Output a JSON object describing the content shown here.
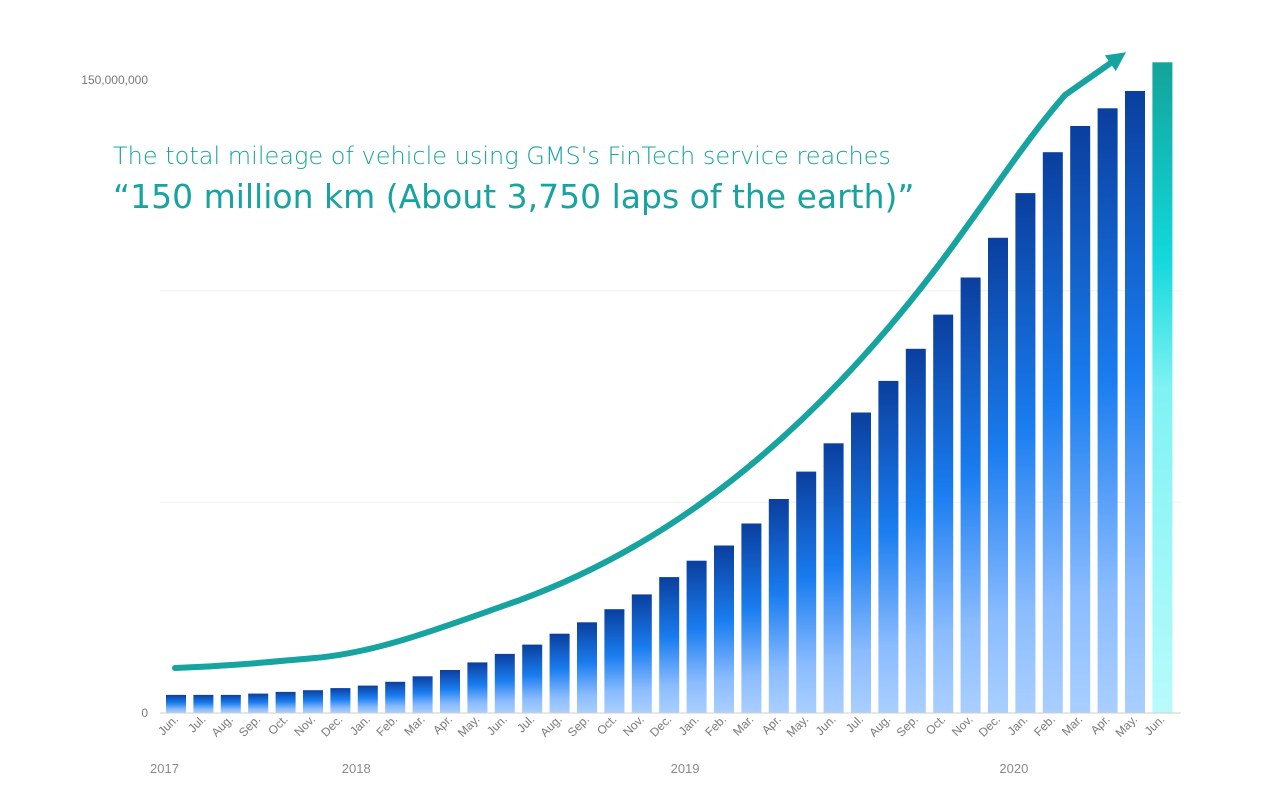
{
  "headline": {
    "line1": "The total mileage of vehicle using GMS's FinTech service reaches",
    "line2": "“150 million km (About 3,750 laps of the earth)”"
  },
  "colors": {
    "accent_teal": "#17a3a0",
    "bar_dark": "#0a3f9e",
    "bar_mid": "#1a7df0",
    "bar_light": "#9ec8ff",
    "highlight_top": "#13a39a",
    "highlight_mid": "#12d8dc",
    "highlight_light": "#b8fbfb"
  },
  "chart_data": {
    "type": "bar",
    "title": "",
    "xlabel": "",
    "ylabel": "",
    "ylim": [
      0,
      150000000
    ],
    "y_tick_labels": [
      "0",
      "150,000,000"
    ],
    "grid": true,
    "categories": [
      "Jun.",
      "Jul.",
      "Aug.",
      "Sep.",
      "Oct.",
      "Nov.",
      "Dec.",
      "Jan.",
      "Feb.",
      "Mar.",
      "Apr.",
      "May.",
      "Jun.",
      "Jul.",
      "Aug.",
      "Sep.",
      "Oct.",
      "Nov.",
      "Dec.",
      "Jan.",
      "Feb.",
      "Mar.",
      "Apr.",
      "May.",
      "Jun.",
      "Jul.",
      "Aug.",
      "Sep.",
      "Oct.",
      "Nov.",
      "Dec.",
      "Jan.",
      "Feb.",
      "Mar.",
      "Apr.",
      "May.",
      "Jun."
    ],
    "values": [
      4300000,
      4300000,
      4300000,
      4600000,
      5000000,
      5400000,
      5900000,
      6500000,
      7400000,
      8700000,
      10200000,
      12000000,
      14000000,
      16200000,
      18800000,
      21500000,
      24600000,
      28100000,
      32200000,
      36100000,
      39700000,
      44900000,
      50700000,
      57200000,
      63900000,
      71200000,
      78700000,
      86300000,
      94400000,
      103200000,
      112600000,
      123200000,
      132900000,
      139100000,
      143300000,
      147400000,
      154200000
    ],
    "year_labels": [
      {
        "label": "2017",
        "start_index": 0
      },
      {
        "label": "2018",
        "start_index": 7
      },
      {
        "label": "2019",
        "start_index": 19
      },
      {
        "label": "2020",
        "start_index": 31
      }
    ],
    "highlight_index": 36
  }
}
